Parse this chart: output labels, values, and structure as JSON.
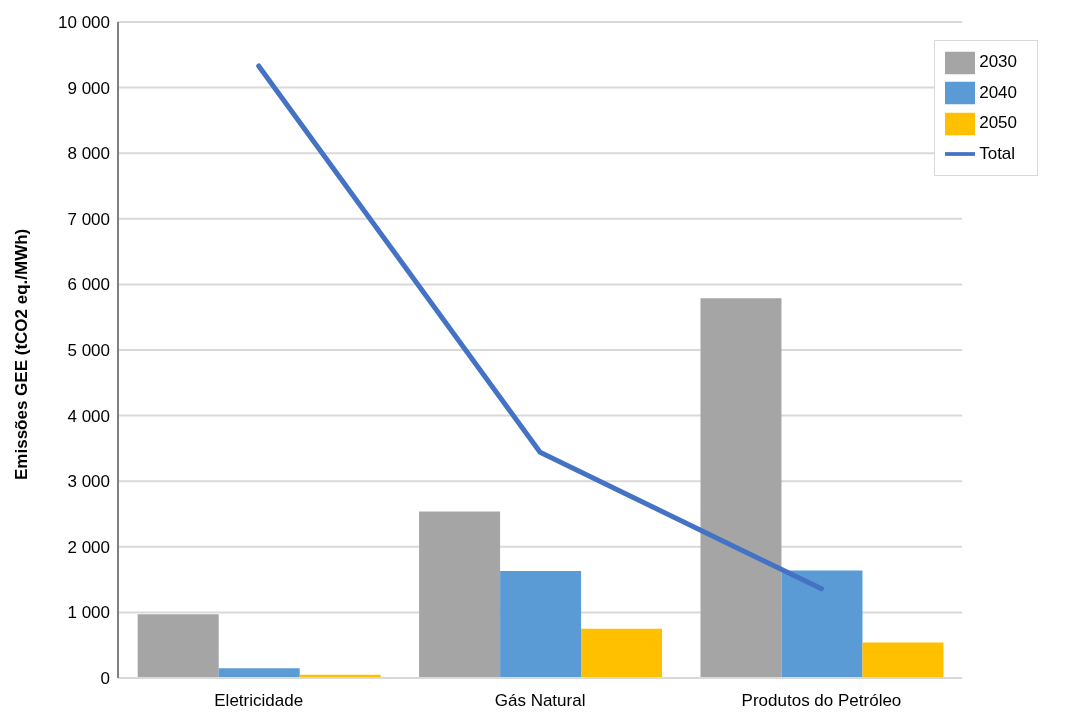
{
  "chart_data": {
    "type": "bar",
    "ylabel": "Emissões GEE (tCO2 eq./MWh)",
    "categories": [
      "Eletricidade",
      "Gás Natural",
      "Produtos do Petróleo"
    ],
    "series": [
      {
        "name": "2030",
        "color": "#a5a5a5",
        "values": [
          970,
          2540,
          5790
        ]
      },
      {
        "name": "2040",
        "color": "#5b9bd5",
        "values": [
          150,
          1630,
          1640
        ]
      },
      {
        "name": "2050",
        "color": "#ffc000",
        "values": [
          50,
          750,
          540
        ]
      },
      {
        "name": "Total",
        "type": "line",
        "color": "#4472c4",
        "values": [
          9330,
          3440,
          1360
        ]
      }
    ],
    "ylim": [
      0,
      10000
    ],
    "yticks": [
      {
        "value": 0,
        "label": "0"
      },
      {
        "value": 1000,
        "label": "1 000"
      },
      {
        "value": 2000,
        "label": "2 000"
      },
      {
        "value": 3000,
        "label": "3 000"
      },
      {
        "value": 4000,
        "label": "4 000"
      },
      {
        "value": 5000,
        "label": "5 000"
      },
      {
        "value": 6000,
        "label": "6 000"
      },
      {
        "value": 7000,
        "label": "7 000"
      },
      {
        "value": 8000,
        "label": "8 000"
      },
      {
        "value": 9000,
        "label": "9 000"
      },
      {
        "value": 10000,
        "label": "10 000"
      }
    ],
    "grid": "y",
    "legend": "top right",
    "marker": "none"
  }
}
